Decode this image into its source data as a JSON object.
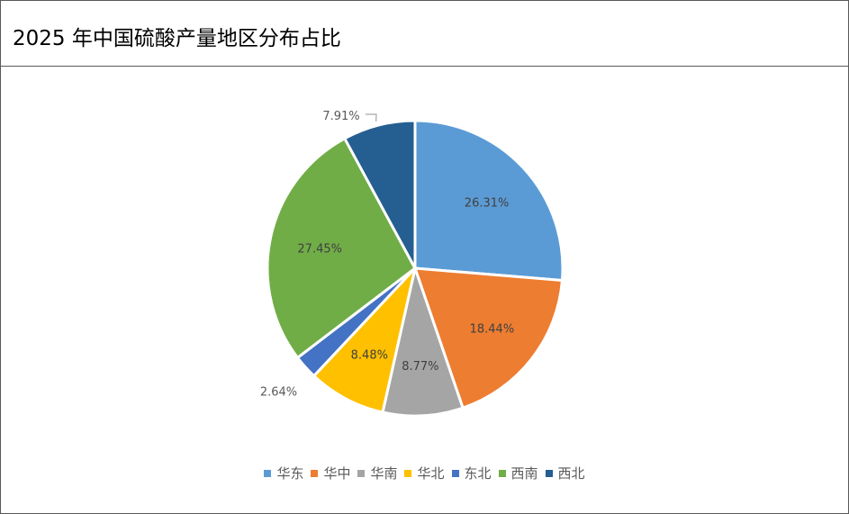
{
  "chart_data": {
    "type": "pie",
    "title": "2025 年中国硫酸产量地区分布占比",
    "categories": [
      "华东",
      "华中",
      "华南",
      "华北",
      "东北",
      "西南",
      "西北"
    ],
    "values": [
      26.31,
      18.44,
      8.77,
      8.48,
      2.64,
      27.45,
      7.91
    ],
    "labels": [
      "26.31%",
      "18.44%",
      "8.77%",
      "8.48%",
      "2.64%",
      "27.45%",
      "7.91%"
    ],
    "colors": [
      "#5B9BD5",
      "#ED7D31",
      "#A5A5A5",
      "#FFC000",
      "#4472C4",
      "#70AD47",
      "#255E91"
    ],
    "legend_position": "bottom"
  }
}
